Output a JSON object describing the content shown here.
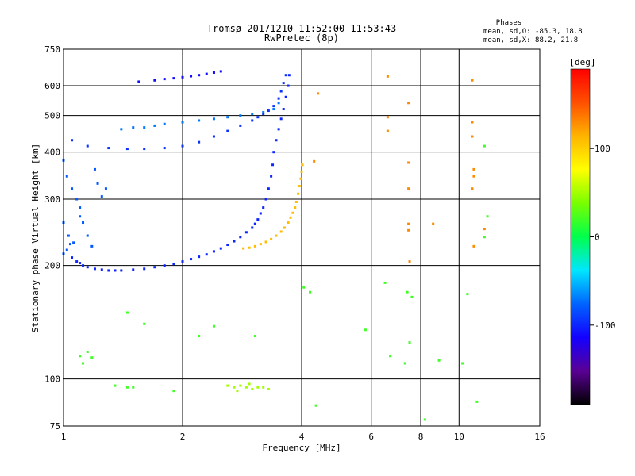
{
  "chart_data": {
    "type": "scatter",
    "title": "Tromsø 20171210 11:52:00-11:53:43",
    "subtitle": "RwPretec (8p)",
    "xlabel": "Frequency [MHz]",
    "ylabel": "Stationary phase Virtual Height [km]",
    "x_scale": "log",
    "y_scale": "log",
    "xlim": [
      1,
      16
    ],
    "ylim": [
      75,
      750
    ],
    "x_ticks": [
      1,
      2,
      4,
      6,
      8,
      10,
      16
    ],
    "x_tick_labels": [
      "1",
      "2",
      "4",
      "6",
      "8",
      "10",
      "16"
    ],
    "y_ticks": [
      75,
      100,
      200,
      300,
      400,
      500,
      600,
      750
    ],
    "y_tick_labels": [
      "75",
      "100",
      "200",
      "300",
      "400",
      "500",
      "600",
      "750"
    ],
    "x_gridlines": [
      2,
      4,
      6,
      8,
      10
    ],
    "y_gridlines": [
      100,
      200,
      300,
      400,
      500,
      600
    ],
    "grid": true,
    "legend": {
      "header": "Phases",
      "line1": "mean, sd,O: -85.3, 18.8",
      "line2": "mean, sd,X:  88.2, 21.8",
      "placement": "top-right"
    },
    "colorbar": {
      "label": "[deg]",
      "ticks": [
        100,
        0,
        -100
      ],
      "tick_labels": [
        "100",
        "0",
        "-100"
      ],
      "range": [
        -190,
        190
      ],
      "colors_low_to_high": [
        "#000000",
        "#5a0094",
        "#1400ff",
        "#0064ff",
        "#00e6ff",
        "#00ff4c",
        "#78ff00",
        "#ffff00",
        "#ffb400",
        "#ff5000",
        "#ff0000"
      ]
    },
    "series": [
      {
        "trace": "F2 O-mode main trace",
        "phase_deg": -100,
        "points": [
          [
            1.05,
            210
          ],
          [
            1.08,
            205
          ],
          [
            1.1,
            203
          ],
          [
            1.12,
            200
          ],
          [
            1.15,
            198
          ],
          [
            1.2,
            196
          ],
          [
            1.25,
            195
          ],
          [
            1.3,
            194
          ],
          [
            1.35,
            194
          ],
          [
            1.4,
            194
          ],
          [
            1.5,
            195
          ],
          [
            1.6,
            196
          ],
          [
            1.7,
            198
          ],
          [
            1.8,
            200
          ],
          [
            1.9,
            202
          ],
          [
            2.0,
            205
          ],
          [
            2.1,
            208
          ],
          [
            2.2,
            211
          ],
          [
            2.3,
            214
          ],
          [
            2.4,
            218
          ],
          [
            2.5,
            222
          ],
          [
            2.6,
            227
          ],
          [
            2.7,
            232
          ],
          [
            2.8,
            238
          ],
          [
            2.9,
            245
          ],
          [
            3.0,
            252
          ],
          [
            3.05,
            258
          ],
          [
            3.1,
            265
          ],
          [
            3.15,
            275
          ],
          [
            3.2,
            285
          ],
          [
            3.25,
            300
          ],
          [
            3.3,
            320
          ],
          [
            3.35,
            345
          ],
          [
            3.38,
            370
          ],
          [
            3.4,
            400
          ],
          [
            3.45,
            430
          ],
          [
            3.5,
            460
          ],
          [
            3.55,
            490
          ],
          [
            3.6,
            520
          ],
          [
            3.65,
            560
          ],
          [
            3.7,
            600
          ],
          [
            3.72,
            640
          ]
        ]
      },
      {
        "trace": "F2 X-mode trace",
        "phase_deg": 110,
        "points": [
          [
            2.85,
            222
          ],
          [
            2.95,
            223
          ],
          [
            3.05,
            225
          ],
          [
            3.15,
            228
          ],
          [
            3.25,
            231
          ],
          [
            3.35,
            235
          ],
          [
            3.45,
            240
          ],
          [
            3.55,
            246
          ],
          [
            3.62,
            252
          ],
          [
            3.7,
            260
          ],
          [
            3.75,
            268
          ],
          [
            3.8,
            276
          ],
          [
            3.85,
            285
          ],
          [
            3.88,
            295
          ],
          [
            3.92,
            310
          ],
          [
            3.95,
            325
          ],
          [
            3.98,
            340
          ],
          [
            4.0,
            355
          ],
          [
            4.02,
            370
          ]
        ]
      },
      {
        "trace": "F2 second hop O-mode",
        "phase_deg": -95,
        "points": [
          [
            1.05,
            430
          ],
          [
            1.15,
            415
          ],
          [
            1.3,
            410
          ],
          [
            1.45,
            408
          ],
          [
            1.6,
            408
          ],
          [
            1.8,
            410
          ],
          [
            2.0,
            415
          ],
          [
            2.2,
            425
          ],
          [
            2.4,
            440
          ],
          [
            2.6,
            455
          ],
          [
            2.8,
            470
          ],
          [
            3.0,
            485
          ],
          [
            3.1,
            495
          ],
          [
            3.2,
            505
          ],
          [
            3.3,
            515
          ],
          [
            3.4,
            530
          ],
          [
            3.5,
            555
          ],
          [
            3.55,
            580
          ],
          [
            3.6,
            610
          ],
          [
            3.65,
            640
          ]
        ]
      },
      {
        "trace": "upper diffuse trace",
        "phase_deg": -70,
        "points": [
          [
            1.4,
            460
          ],
          [
            1.5,
            465
          ],
          [
            1.6,
            465
          ],
          [
            1.7,
            470
          ],
          [
            1.8,
            475
          ],
          [
            2.0,
            480
          ],
          [
            2.2,
            485
          ],
          [
            2.4,
            490
          ],
          [
            2.6,
            495
          ],
          [
            2.8,
            500
          ],
          [
            3.0,
            505
          ],
          [
            3.2,
            510
          ],
          [
            3.4,
            520
          ],
          [
            3.5,
            540
          ]
        ]
      },
      {
        "trace": "top trace near 650 km",
        "phase_deg": -110,
        "points": [
          [
            1.55,
            615
          ],
          [
            1.7,
            620
          ],
          [
            1.8,
            625
          ],
          [
            1.9,
            628
          ],
          [
            2.0,
            632
          ],
          [
            2.1,
            636
          ],
          [
            2.2,
            640
          ],
          [
            2.3,
            645
          ],
          [
            2.4,
            650
          ],
          [
            2.5,
            655
          ]
        ]
      },
      {
        "trace": "low-frequency spread",
        "phase_deg": -80,
        "points": [
          [
            1.0,
            380
          ],
          [
            1.02,
            345
          ],
          [
            1.05,
            320
          ],
          [
            1.08,
            300
          ],
          [
            1.1,
            285
          ],
          [
            1.12,
            260
          ],
          [
            1.15,
            240
          ],
          [
            1.18,
            225
          ],
          [
            1.2,
            360
          ],
          [
            1.22,
            330
          ],
          [
            1.25,
            305
          ],
          [
            1.0,
            260
          ],
          [
            1.03,
            240
          ],
          [
            1.06,
            230
          ],
          [
            1.0,
            215
          ],
          [
            1.02,
            220
          ],
          [
            1.04,
            228
          ],
          [
            1.1,
            270
          ],
          [
            1.28,
            320
          ]
        ]
      },
      {
        "trace": "E-region echoes near 95 km",
        "phase_deg": 50,
        "points": [
          [
            2.6,
            96
          ],
          [
            2.7,
            95
          ],
          [
            2.8,
            96
          ],
          [
            2.9,
            95
          ],
          [
            3.0,
            94
          ],
          [
            3.1,
            95
          ],
          [
            3.2,
            95
          ],
          [
            3.3,
            94
          ],
          [
            2.75,
            93
          ],
          [
            2.95,
            97
          ]
        ]
      },
      {
        "trace": "scattered echoes",
        "phase_deg": 20,
        "points": [
          [
            1.1,
            115
          ],
          [
            1.12,
            110
          ],
          [
            1.15,
            118
          ],
          [
            1.18,
            114
          ],
          [
            1.35,
            96
          ],
          [
            1.45,
            95
          ],
          [
            1.5,
            95
          ],
          [
            1.9,
            93
          ],
          [
            2.2,
            130
          ],
          [
            2.4,
            138
          ],
          [
            3.05,
            130
          ],
          [
            1.6,
            140
          ],
          [
            1.45,
            150
          ],
          [
            4.05,
            175
          ],
          [
            4.2,
            170
          ],
          [
            4.35,
            85
          ],
          [
            5.8,
            135
          ],
          [
            6.5,
            180
          ],
          [
            6.7,
            115
          ],
          [
            7.3,
            110
          ],
          [
            7.5,
            125
          ],
          [
            7.4,
            170
          ],
          [
            7.6,
            165
          ],
          [
            8.2,
            78
          ],
          [
            8.9,
            112
          ],
          [
            10.2,
            110
          ],
          [
            10.5,
            168
          ],
          [
            11.1,
            87
          ],
          [
            11.6,
            415
          ],
          [
            11.8,
            270
          ],
          [
            11.6,
            238
          ]
        ]
      },
      {
        "trace": "high-frequency isolated echoes",
        "phase_deg": 130,
        "points": [
          [
            6.6,
            635
          ],
          [
            6.6,
            495
          ],
          [
            6.6,
            455
          ],
          [
            7.45,
            540
          ],
          [
            7.45,
            375
          ],
          [
            7.45,
            320
          ],
          [
            7.45,
            258
          ],
          [
            7.45,
            248
          ],
          [
            7.5,
            205
          ],
          [
            10.8,
            620
          ],
          [
            10.8,
            480
          ],
          [
            10.8,
            440
          ],
          [
            10.9,
            360
          ],
          [
            10.9,
            345
          ],
          [
            10.8,
            320
          ],
          [
            10.9,
            225
          ],
          [
            11.6,
            250
          ],
          [
            8.6,
            258
          ],
          [
            4.4,
            572
          ],
          [
            4.3,
            378
          ]
        ]
      }
    ]
  }
}
